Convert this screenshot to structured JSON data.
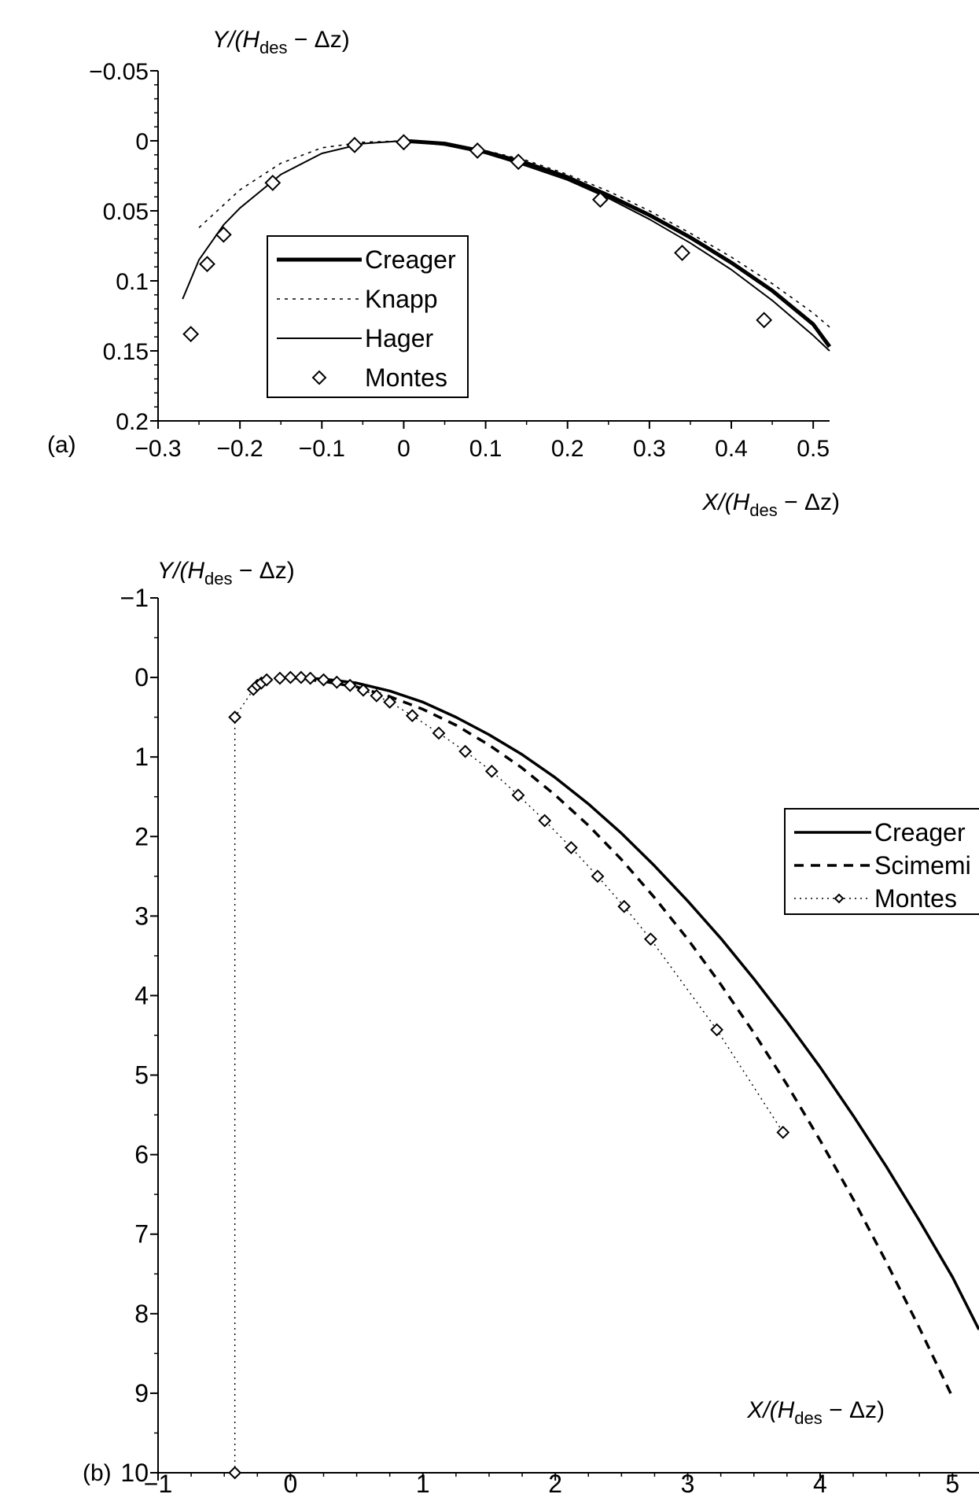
{
  "chart_data": [
    {
      "type": "line",
      "panel_label": "(a)",
      "ylabel_main": "Y/(H",
      "ylabel_sub": "des",
      "ylabel_rest": " − Δz)",
      "xlabel_main": "X/(H",
      "xlabel_sub": "des",
      "xlabel_rest": " − Δz)",
      "xlim": [
        -0.3,
        0.52
      ],
      "ylim": [
        -0.05,
        0.2
      ],
      "y_inverted": true,
      "grid": false,
      "legend_position": "lower-left",
      "x_ticks": [
        -0.3,
        -0.2,
        -0.1,
        0,
        0.1,
        0.2,
        0.3,
        0.4,
        0.5
      ],
      "x_tick_labels": [
        "−0.3",
        "−0.2",
        "−0.1",
        "0",
        "0.1",
        "0.2",
        "0.3",
        "0.4",
        "0.5"
      ],
      "y_ticks": [
        -0.05,
        0,
        0.05,
        0.1,
        0.15,
        0.2
      ],
      "y_tick_labels": [
        "−0.05",
        "0",
        "0.05",
        "0.1",
        "0.15",
        "0.2"
      ],
      "series": [
        {
          "name": "Creager",
          "style": "thick",
          "x": [
            0,
            0.05,
            0.1,
            0.15,
            0.2,
            0.25,
            0.3,
            0.35,
            0.4,
            0.45,
            0.5,
            0.52
          ],
          "y": [
            0,
            0.002,
            0.008,
            0.016,
            0.026,
            0.039,
            0.053,
            0.069,
            0.087,
            0.107,
            0.131,
            0.147
          ]
        },
        {
          "name": "Knapp",
          "style": "dotted",
          "x": [
            -0.25,
            -0.2,
            -0.15,
            -0.1,
            -0.05,
            0,
            0.05,
            0.1,
            0.15,
            0.2,
            0.25,
            0.3,
            0.35,
            0.4,
            0.45,
            0.5,
            0.52
          ],
          "y": [
            0.062,
            0.035,
            0.016,
            0.005,
            0.001,
            0,
            0.002,
            0.007,
            0.014,
            0.024,
            0.036,
            0.05,
            0.066,
            0.083,
            0.102,
            0.123,
            0.133
          ]
        },
        {
          "name": "Hager",
          "style": "thin",
          "x": [
            -0.27,
            -0.25,
            -0.22,
            -0.2,
            -0.15,
            -0.1,
            -0.05,
            0,
            0.05,
            0.1,
            0.15,
            0.2,
            0.25,
            0.3,
            0.35,
            0.4,
            0.45,
            0.5,
            0.52
          ],
          "y": [
            0.113,
            0.085,
            0.06,
            0.048,
            0.024,
            0.009,
            0.002,
            0,
            0.003,
            0.009,
            0.018,
            0.028,
            0.041,
            0.056,
            0.073,
            0.092,
            0.114,
            0.139,
            0.15
          ]
        },
        {
          "name": "Montes",
          "style": "markers",
          "x": [
            -0.26,
            -0.24,
            -0.22,
            -0.16,
            -0.06,
            0,
            0.09,
            0.14,
            0.24,
            0.34,
            0.44
          ],
          "y": [
            0.138,
            0.088,
            0.067,
            0.03,
            0.003,
            0.001,
            0.007,
            0.015,
            0.042,
            0.08,
            0.128
          ]
        }
      ]
    },
    {
      "type": "line",
      "panel_label": "(b)",
      "ylabel_main": "Y/(H",
      "ylabel_sub": "des",
      "ylabel_rest": " − Δz)",
      "xlabel_main": "X/(H",
      "xlabel_sub": "des",
      "xlabel_rest": " − Δz)",
      "xlim": [
        -1,
        5.2
      ],
      "ylim": [
        -1,
        10
      ],
      "y_inverted": true,
      "grid": false,
      "legend_position": "right",
      "x_ticks": [
        -1,
        0,
        1,
        2,
        3,
        4,
        5
      ],
      "x_tick_labels": [
        "−1",
        "0",
        "1",
        "2",
        "3",
        "4",
        "5"
      ],
      "y_ticks": [
        -1,
        0,
        1,
        2,
        3,
        4,
        5,
        6,
        7,
        8,
        9,
        10
      ],
      "y_tick_labels": [
        "−1",
        "0",
        "1",
        "2",
        "3",
        "4",
        "5",
        "6",
        "7",
        "8",
        "9",
        "10"
      ],
      "series": [
        {
          "name": "Creager",
          "style": "solid",
          "x": [
            0,
            0.25,
            0.5,
            0.75,
            1,
            1.25,
            1.5,
            1.75,
            2,
            2.25,
            2.5,
            2.75,
            3,
            3.25,
            3.5,
            3.75,
            4,
            4.25,
            4.5,
            4.75,
            5,
            5.2
          ],
          "y": [
            0,
            0.02,
            0.07,
            0.17,
            0.31,
            0.5,
            0.72,
            0.97,
            1.26,
            1.59,
            1.96,
            2.37,
            2.81,
            3.28,
            3.79,
            4.33,
            4.9,
            5.51,
            6.15,
            6.83,
            7.54,
            8.2
          ]
        },
        {
          "name": "Scimemi",
          "style": "dashed",
          "x": [
            0,
            0.25,
            0.5,
            0.75,
            1,
            1.25,
            1.5,
            1.75,
            2,
            2.25,
            2.5,
            2.75,
            3,
            3.25,
            3.5,
            3.75,
            4,
            4.25,
            4.5,
            4.75,
            5
          ],
          "y": [
            0,
            0.05,
            0.12,
            0.24,
            0.4,
            0.6,
            0.85,
            1.14,
            1.48,
            1.86,
            2.29,
            2.77,
            3.29,
            3.86,
            4.47,
            5.12,
            5.82,
            6.56,
            7.35,
            8.18,
            9.05
          ]
        },
        {
          "name": "Montes",
          "style": "dotted-markers",
          "x": [
            -0.42,
            -0.42,
            -0.28,
            -0.25,
            -0.22,
            -0.18,
            -0.08,
            0,
            0.08,
            0.15,
            0.25,
            0.35,
            0.45,
            0.55,
            0.65,
            0.75,
            0.92,
            1.12,
            1.32,
            1.52,
            1.72,
            1.92,
            2.12,
            2.32,
            2.52,
            2.72,
            3.22,
            3.72
          ],
          "y": [
            10,
            0.5,
            0.15,
            0.1,
            0.07,
            0.03,
            0.01,
            0,
            0,
            0.01,
            0.03,
            0.06,
            0.1,
            0.16,
            0.23,
            0.31,
            0.48,
            0.7,
            0.93,
            1.18,
            1.48,
            1.8,
            2.14,
            2.5,
            2.88,
            3.29,
            4.43,
            5.72
          ]
        }
      ]
    }
  ]
}
